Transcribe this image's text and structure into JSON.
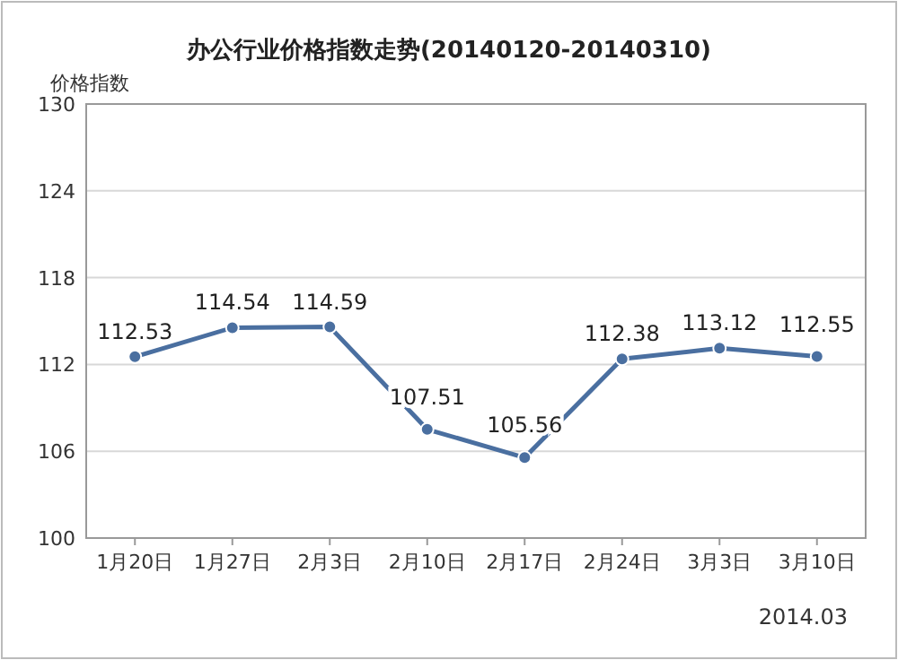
{
  "chart_data": {
    "type": "line",
    "title": "办公行业价格指数走势(20140120-20140310)",
    "ylabel": "价格指数",
    "categories": [
      "1月20日",
      "1月27日",
      "2月3日",
      "2月10日",
      "2月17日",
      "2月24日",
      "3月3日",
      "3月10日"
    ],
    "series": [
      {
        "color": "#4a6fa0",
        "values": [
          112.53,
          114.54,
          114.59,
          107.51,
          105.56,
          112.38,
          113.12,
          112.55
        ]
      }
    ],
    "ylim": [
      100,
      130
    ],
    "yticks": [
      100,
      106,
      112,
      118,
      124,
      130
    ],
    "grid": "y",
    "data_labels": true,
    "marker": "circle",
    "annotations": [
      "2014.03"
    ]
  }
}
